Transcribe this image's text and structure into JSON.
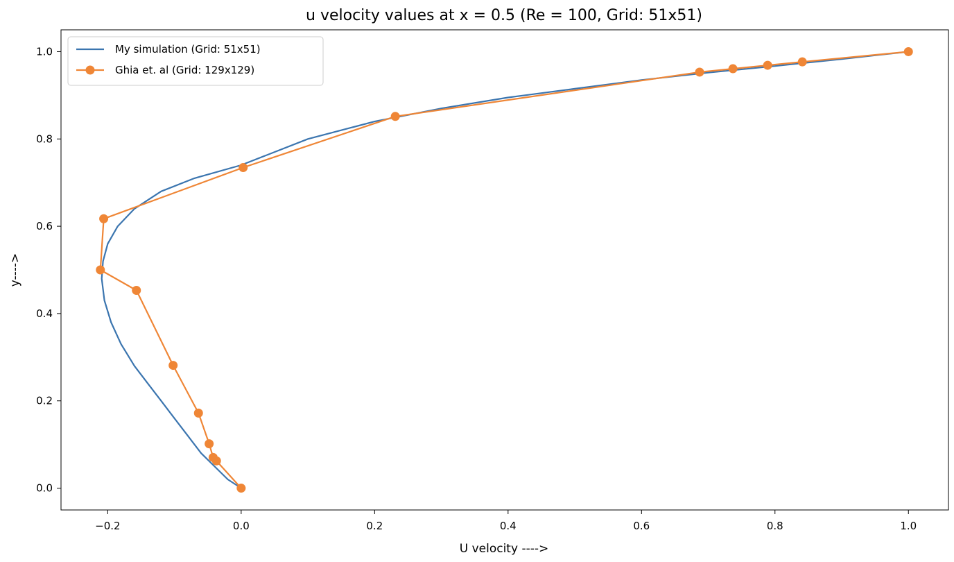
{
  "chart_data": {
    "type": "line",
    "title": "u velocity values at x = 0.5 (Re = 100, Grid: 51x51)",
    "xlabel": "U velocity ---->",
    "ylabel": "y---->",
    "xlim": [
      -0.27,
      1.06
    ],
    "ylim": [
      -0.05,
      1.05
    ],
    "xticks": [
      -0.2,
      0.0,
      0.2,
      0.4,
      0.6,
      0.8,
      1.0
    ],
    "xtick_labels": [
      "−0.2",
      "0.0",
      "0.2",
      "0.4",
      "0.6",
      "0.8",
      "1.0"
    ],
    "yticks": [
      0.0,
      0.2,
      0.4,
      0.6,
      0.8,
      1.0
    ],
    "ytick_labels": [
      "0.0",
      "0.2",
      "0.4",
      "0.6",
      "0.8",
      "1.0"
    ],
    "grid": false,
    "legend_position": "top-left",
    "series": [
      {
        "name": "My simulation (Grid: 51x51)",
        "color": "#3b75af",
        "marker": "none",
        "points": [
          [
            0.0,
            0.0
          ],
          [
            -0.02,
            0.02
          ],
          [
            -0.04,
            0.05
          ],
          [
            -0.06,
            0.08
          ],
          [
            -0.08,
            0.12
          ],
          [
            -0.1,
            0.16
          ],
          [
            -0.12,
            0.2
          ],
          [
            -0.14,
            0.24
          ],
          [
            -0.16,
            0.28
          ],
          [
            -0.18,
            0.33
          ],
          [
            -0.195,
            0.38
          ],
          [
            -0.205,
            0.43
          ],
          [
            -0.209,
            0.48
          ],
          [
            -0.207,
            0.52
          ],
          [
            -0.2,
            0.56
          ],
          [
            -0.185,
            0.6
          ],
          [
            -0.16,
            0.64
          ],
          [
            -0.12,
            0.68
          ],
          [
            -0.07,
            0.71
          ],
          [
            0.0,
            0.74
          ],
          [
            0.1,
            0.8
          ],
          [
            0.2,
            0.84
          ],
          [
            0.3,
            0.87
          ],
          [
            0.4,
            0.895
          ],
          [
            0.5,
            0.915
          ],
          [
            0.6,
            0.935
          ],
          [
            0.7,
            0.952
          ],
          [
            0.8,
            0.967
          ],
          [
            0.9,
            0.983
          ],
          [
            1.0,
            1.0
          ]
        ]
      },
      {
        "name": "Ghia et. al (Grid: 129x129)",
        "color": "#ef8636",
        "marker": "circle",
        "points": [
          [
            0.0,
            0.0
          ],
          [
            -0.037,
            0.0625
          ],
          [
            -0.042,
            0.0703
          ],
          [
            -0.048,
            0.1016
          ],
          [
            -0.064,
            0.1719
          ],
          [
            -0.102,
            0.2813
          ],
          [
            -0.157,
            0.4531
          ],
          [
            -0.211,
            0.5
          ],
          [
            -0.206,
            0.6172
          ],
          [
            0.003,
            0.7344
          ],
          [
            0.231,
            0.8516
          ],
          [
            0.687,
            0.9531
          ],
          [
            0.737,
            0.9609
          ],
          [
            0.789,
            0.9688
          ],
          [
            0.841,
            0.9766
          ],
          [
            1.0,
            1.0
          ]
        ]
      }
    ]
  }
}
